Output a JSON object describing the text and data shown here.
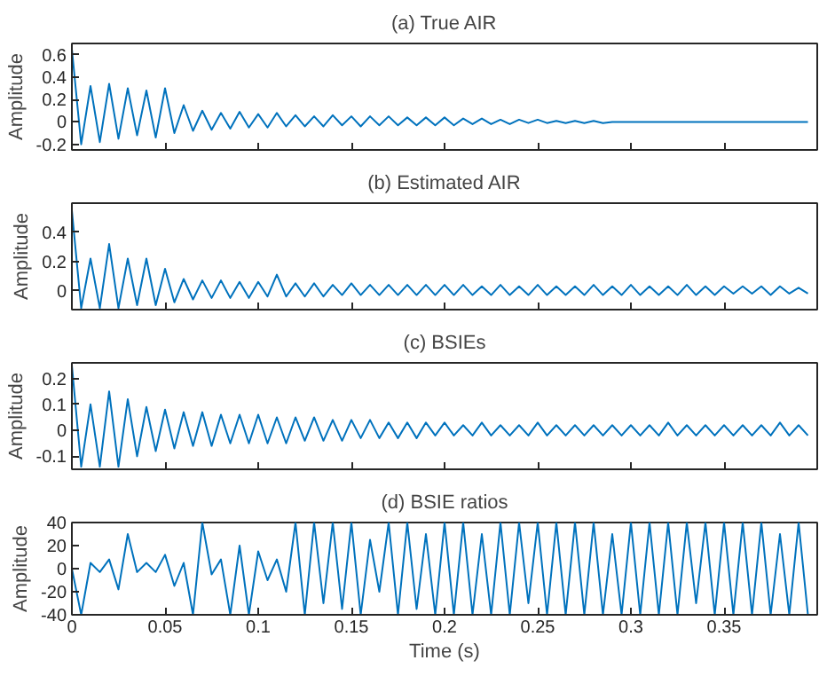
{
  "chart_data": [
    {
      "type": "line",
      "title": "(a) True AIR",
      "ylabel": "Amplitude",
      "tick_labels": "y",
      "xlim": [
        0,
        0.4
      ],
      "ylim": [
        -0.25,
        0.7
      ],
      "xticks": [
        0,
        0.05,
        0.1,
        0.15,
        0.2,
        0.25,
        0.3,
        0.35
      ],
      "yticks": [
        -0.2,
        0,
        0.2,
        0.4,
        0.6
      ],
      "x": [
        0,
        0.005,
        0.01,
        0.015,
        0.02,
        0.025,
        0.03,
        0.035,
        0.04,
        0.045,
        0.05,
        0.055,
        0.06,
        0.065,
        0.07,
        0.075,
        0.08,
        0.085,
        0.09,
        0.095,
        0.1,
        0.105,
        0.11,
        0.115,
        0.12,
        0.125,
        0.13,
        0.135,
        0.14,
        0.145,
        0.15,
        0.155,
        0.16,
        0.165,
        0.17,
        0.175,
        0.18,
        0.185,
        0.19,
        0.195,
        0.2,
        0.205,
        0.21,
        0.215,
        0.22,
        0.225,
        0.23,
        0.235,
        0.24,
        0.245,
        0.25,
        0.255,
        0.26,
        0.265,
        0.27,
        0.275,
        0.28,
        0.285,
        0.29,
        0.295,
        0.3,
        0.305,
        0.31,
        0.315,
        0.32,
        0.325,
        0.33,
        0.335,
        0.34,
        0.345,
        0.35,
        0.355,
        0.36,
        0.365,
        0.37,
        0.375,
        0.38,
        0.385,
        0.39,
        0.395
      ],
      "series": [
        {
          "color": "#0072bd",
          "values": [
            0.65,
            -0.2,
            0.32,
            -0.18,
            0.34,
            -0.15,
            0.3,
            -0.12,
            0.28,
            -0.14,
            0.3,
            -0.1,
            0.15,
            -0.08,
            0.1,
            -0.07,
            0.08,
            -0.06,
            0.09,
            -0.05,
            0.07,
            -0.05,
            0.08,
            -0.04,
            0.06,
            -0.04,
            0.05,
            -0.04,
            0.06,
            -0.03,
            0.05,
            -0.04,
            0.05,
            -0.03,
            0.05,
            -0.03,
            0.04,
            -0.03,
            0.04,
            -0.03,
            0.04,
            -0.03,
            0.03,
            -0.02,
            0.03,
            -0.02,
            0.02,
            -0.02,
            0.02,
            -0.01,
            0.02,
            -0.01,
            0.01,
            -0.01,
            0.01,
            -0.01,
            0.01,
            -0.01,
            0,
            0,
            0,
            0,
            0,
            0,
            0,
            0,
            0,
            0,
            0,
            0,
            0,
            0,
            0,
            0,
            0,
            0,
            0,
            0,
            0,
            0
          ]
        }
      ]
    },
    {
      "type": "line",
      "title": "(b) Estimated AIR",
      "ylabel": "Amplitude",
      "tick_labels": "y",
      "xlim": [
        0,
        0.4
      ],
      "ylim": [
        -0.13,
        0.6
      ],
      "xticks": [
        0,
        0.05,
        0.1,
        0.15,
        0.2,
        0.25,
        0.3,
        0.35
      ],
      "yticks": [
        0,
        0.2,
        0.4
      ],
      "x": [
        0,
        0.005,
        0.01,
        0.015,
        0.02,
        0.025,
        0.03,
        0.035,
        0.04,
        0.045,
        0.05,
        0.055,
        0.06,
        0.065,
        0.07,
        0.075,
        0.08,
        0.085,
        0.09,
        0.095,
        0.1,
        0.105,
        0.11,
        0.115,
        0.12,
        0.125,
        0.13,
        0.135,
        0.14,
        0.145,
        0.15,
        0.155,
        0.16,
        0.165,
        0.17,
        0.175,
        0.18,
        0.185,
        0.19,
        0.195,
        0.2,
        0.205,
        0.21,
        0.215,
        0.22,
        0.225,
        0.23,
        0.235,
        0.24,
        0.245,
        0.25,
        0.255,
        0.26,
        0.265,
        0.27,
        0.275,
        0.28,
        0.285,
        0.29,
        0.295,
        0.3,
        0.305,
        0.31,
        0.315,
        0.32,
        0.325,
        0.33,
        0.335,
        0.34,
        0.345,
        0.35,
        0.355,
        0.36,
        0.365,
        0.37,
        0.375,
        0.38,
        0.385,
        0.39,
        0.395
      ],
      "series": [
        {
          "color": "#0072bd",
          "values": [
            0.55,
            -0.12,
            0.22,
            -0.12,
            0.32,
            -0.12,
            0.22,
            -0.1,
            0.22,
            -0.1,
            0.15,
            -0.08,
            0.08,
            -0.06,
            0.07,
            -0.05,
            0.07,
            -0.05,
            0.06,
            -0.05,
            0.06,
            -0.04,
            0.11,
            -0.04,
            0.05,
            -0.04,
            0.05,
            -0.04,
            0.04,
            -0.03,
            0.05,
            -0.03,
            0.04,
            -0.03,
            0.04,
            -0.03,
            0.04,
            -0.03,
            0.04,
            -0.03,
            0.04,
            -0.03,
            0.04,
            -0.03,
            0.03,
            -0.03,
            0.04,
            -0.03,
            0.03,
            -0.03,
            0.04,
            -0.03,
            0.03,
            -0.03,
            0.03,
            -0.03,
            0.04,
            -0.03,
            0.03,
            -0.03,
            0.04,
            -0.03,
            0.03,
            -0.03,
            0.03,
            -0.03,
            0.04,
            -0.03,
            0.03,
            -0.03,
            0.03,
            -0.02,
            0.03,
            -0.02,
            0.03,
            -0.03,
            0.03,
            -0.02,
            0.02,
            -0.02
          ]
        }
      ]
    },
    {
      "type": "line",
      "title": "(c) BSIEs",
      "ylabel": "Amplitude",
      "tick_labels": "y",
      "xlim": [
        0,
        0.4
      ],
      "ylim": [
        -0.15,
        0.26
      ],
      "xticks": [
        0,
        0.05,
        0.1,
        0.15,
        0.2,
        0.25,
        0.3,
        0.35
      ],
      "yticks": [
        -0.1,
        0,
        0.1,
        0.2
      ],
      "x": [
        0,
        0.005,
        0.01,
        0.015,
        0.02,
        0.025,
        0.03,
        0.035,
        0.04,
        0.045,
        0.05,
        0.055,
        0.06,
        0.065,
        0.07,
        0.075,
        0.08,
        0.085,
        0.09,
        0.095,
        0.1,
        0.105,
        0.11,
        0.115,
        0.12,
        0.125,
        0.13,
        0.135,
        0.14,
        0.145,
        0.15,
        0.155,
        0.16,
        0.165,
        0.17,
        0.175,
        0.18,
        0.185,
        0.19,
        0.195,
        0.2,
        0.205,
        0.21,
        0.215,
        0.22,
        0.225,
        0.23,
        0.235,
        0.24,
        0.245,
        0.25,
        0.255,
        0.26,
        0.265,
        0.27,
        0.275,
        0.28,
        0.285,
        0.29,
        0.295,
        0.3,
        0.305,
        0.31,
        0.315,
        0.32,
        0.325,
        0.33,
        0.335,
        0.34,
        0.345,
        0.35,
        0.355,
        0.36,
        0.365,
        0.37,
        0.375,
        0.38,
        0.385,
        0.39,
        0.395
      ],
      "series": [
        {
          "color": "#0072bd",
          "values": [
            0.25,
            -0.14,
            0.1,
            -0.14,
            0.15,
            -0.14,
            0.12,
            -0.1,
            0.09,
            -0.08,
            0.08,
            -0.07,
            0.07,
            -0.06,
            0.07,
            -0.06,
            0.06,
            -0.05,
            0.06,
            -0.05,
            0.06,
            -0.05,
            0.05,
            -0.05,
            0.05,
            -0.04,
            0.05,
            -0.04,
            0.04,
            -0.04,
            0.04,
            -0.03,
            0.04,
            -0.03,
            0.03,
            -0.03,
            0.03,
            -0.03,
            0.03,
            -0.02,
            0.03,
            -0.02,
            0.02,
            -0.02,
            0.03,
            -0.02,
            0.02,
            -0.02,
            0.02,
            -0.02,
            0.03,
            -0.02,
            0.02,
            -0.02,
            0.02,
            -0.02,
            0.02,
            -0.02,
            0.02,
            -0.02,
            0.02,
            -0.02,
            0.02,
            -0.02,
            0.03,
            -0.02,
            0.02,
            -0.02,
            0.02,
            -0.02,
            0.02,
            -0.02,
            0.02,
            -0.02,
            0.02,
            -0.02,
            0.03,
            -0.02,
            0.02,
            -0.02
          ]
        }
      ]
    },
    {
      "type": "line",
      "title": "(d) BSIE ratios",
      "ylabel": "Amplitude",
      "xlabel": "Time (s)",
      "xlim": [
        0,
        0.4
      ],
      "ylim": [
        -40,
        40
      ],
      "xticks": [
        0,
        0.05,
        0.1,
        0.15,
        0.2,
        0.25,
        0.3,
        0.35
      ],
      "yticks": [
        -40,
        -20,
        0,
        20,
        40
      ],
      "x": [
        0,
        0.005,
        0.01,
        0.015,
        0.02,
        0.025,
        0.03,
        0.035,
        0.04,
        0.045,
        0.05,
        0.055,
        0.06,
        0.065,
        0.07,
        0.075,
        0.08,
        0.085,
        0.09,
        0.095,
        0.1,
        0.105,
        0.11,
        0.115,
        0.12,
        0.125,
        0.13,
        0.135,
        0.14,
        0.145,
        0.15,
        0.155,
        0.16,
        0.165,
        0.17,
        0.175,
        0.18,
        0.185,
        0.19,
        0.195,
        0.2,
        0.205,
        0.21,
        0.215,
        0.22,
        0.225,
        0.23,
        0.235,
        0.24,
        0.245,
        0.25,
        0.255,
        0.26,
        0.265,
        0.27,
        0.275,
        0.28,
        0.285,
        0.29,
        0.295,
        0.3,
        0.305,
        0.31,
        0.315,
        0.32,
        0.325,
        0.33,
        0.335,
        0.34,
        0.345,
        0.35,
        0.355,
        0.36,
        0.365,
        0.37,
        0.375,
        0.38,
        0.385,
        0.39,
        0.395
      ],
      "series": [
        {
          "color": "#0072bd",
          "values": [
            0,
            -40,
            5,
            -3,
            8,
            -18,
            30,
            -3,
            5,
            -3,
            12,
            -15,
            5,
            -40,
            40,
            -5,
            8,
            -40,
            20,
            -40,
            15,
            -10,
            8,
            -20,
            40,
            -40,
            40,
            -30,
            40,
            -35,
            40,
            -40,
            25,
            -20,
            40,
            -40,
            40,
            -35,
            30,
            -40,
            40,
            -40,
            40,
            -40,
            30,
            -40,
            40,
            -40,
            40,
            -30,
            40,
            -40,
            40,
            -40,
            40,
            -40,
            40,
            -40,
            30,
            -40,
            40,
            -40,
            40,
            -40,
            40,
            -40,
            40,
            -30,
            40,
            -40,
            40,
            -40,
            40,
            -40,
            40,
            -40,
            30,
            -40,
            40,
            -40
          ]
        }
      ]
    }
  ]
}
